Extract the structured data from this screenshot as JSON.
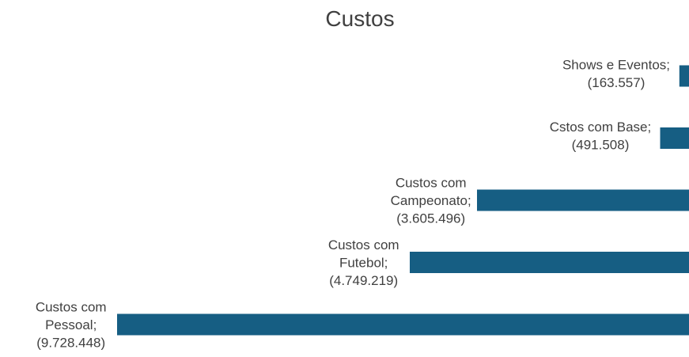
{
  "chart_data": {
    "type": "bar",
    "orientation": "horizontal",
    "title": "Custos",
    "categories": [
      "Shows e Eventos",
      "Cstos com Base",
      "Custos com Campeonato",
      "Custos com Futebol",
      "Custos com Pessoal"
    ],
    "values": [
      -163557,
      -491508,
      -3605496,
      -4749219,
      -9728448
    ],
    "data_labels": [
      [
        "Shows e Eventos;",
        "(163.557)"
      ],
      [
        "Cstos com Base;",
        "(491.508)"
      ],
      [
        "Custos com",
        "Campeonato;",
        "(3.605.496)"
      ],
      [
        "Custos com",
        "Futebol;",
        "(4.749.219)"
      ],
      [
        "Custos com",
        "Pessoal;",
        "(9.728.448)"
      ]
    ],
    "xlabel": "",
    "ylabel": "",
    "grid": false,
    "bar_color": "#165e83"
  }
}
